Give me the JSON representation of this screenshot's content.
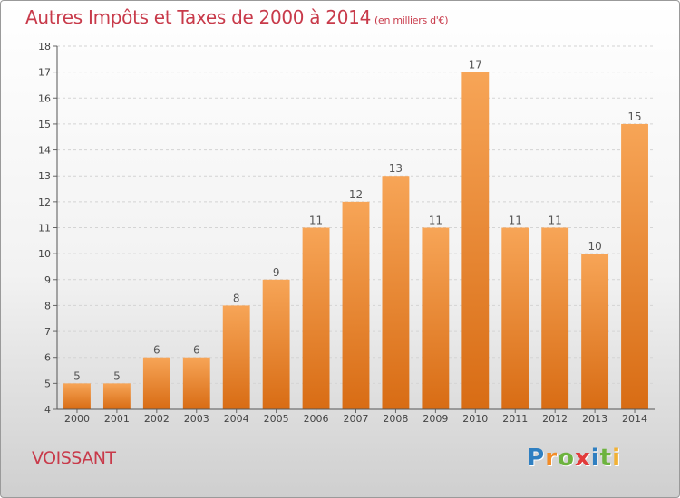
{
  "chart_data": {
    "type": "bar",
    "title": "Autres Impôts et Taxes de 2000 à 2014",
    "subtitle": "(en milliers d'€)",
    "categories": [
      "2000",
      "2001",
      "2002",
      "2003",
      "2004",
      "2005",
      "2006",
      "2007",
      "2008",
      "2009",
      "2010",
      "2011",
      "2012",
      "2013",
      "2014"
    ],
    "values": [
      5,
      5,
      6,
      6,
      8,
      9,
      11,
      12,
      13,
      11,
      17,
      11,
      11,
      10,
      15
    ],
    "ylim": [
      4,
      18
    ],
    "yticks": [
      4,
      5,
      6,
      7,
      8,
      9,
      10,
      11,
      12,
      13,
      14,
      15,
      16,
      17,
      18
    ],
    "grid": true,
    "bar_color": "#f08a2c",
    "xlabel": "",
    "ylabel": ""
  },
  "location": "VOISSANT",
  "logo": {
    "letters": [
      "P",
      "r",
      "o",
      "x",
      "i",
      "t",
      "i"
    ],
    "colors": [
      "#2f7fc1",
      "#f28c28",
      "#6db33f",
      "#e23b3b",
      "#2f7fc1",
      "#6db33f",
      "#f2b134"
    ]
  }
}
